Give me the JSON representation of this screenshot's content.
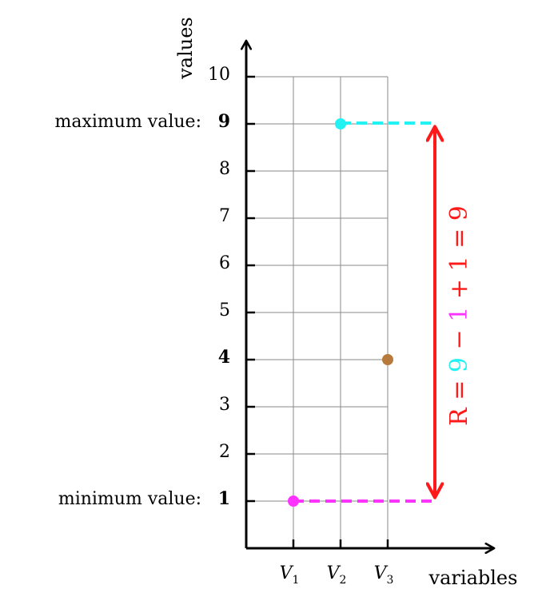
{
  "chart_data": {
    "type": "scatter",
    "xlabel": "variables",
    "ylabel": "values",
    "categories": [
      "V1",
      "V2",
      "V3"
    ],
    "category_labels": [
      {
        "base": "V",
        "sub": "1"
      },
      {
        "base": "V",
        "sub": "2"
      },
      {
        "base": "V",
        "sub": "3"
      }
    ],
    "y_ticks": [
      "2",
      "3",
      "5",
      "6",
      "7",
      "8",
      "10"
    ],
    "ylim": [
      0,
      10
    ],
    "grid": true,
    "points": [
      {
        "category": "V1",
        "value": 1,
        "color": "#ff33ff"
      },
      {
        "category": "V2",
        "value": 9,
        "color": "#22f2f2"
      },
      {
        "category": "V3",
        "value": 4,
        "color": "#b87a3c"
      }
    ],
    "minimum": {
      "label": "minimum value:",
      "value": "1",
      "color": "#ff33ff"
    },
    "maximum": {
      "label": "maximum value:",
      "value": "9",
      "color": "#22f2f2"
    },
    "highlight_tick": {
      "value": "4",
      "color": "#b87a3c"
    },
    "range_formula": {
      "prefix": "R = ",
      "max": "9",
      "minus": " − ",
      "min": "1",
      "rest": " + 1 = 9",
      "color": "#ff1a1a"
    }
  }
}
